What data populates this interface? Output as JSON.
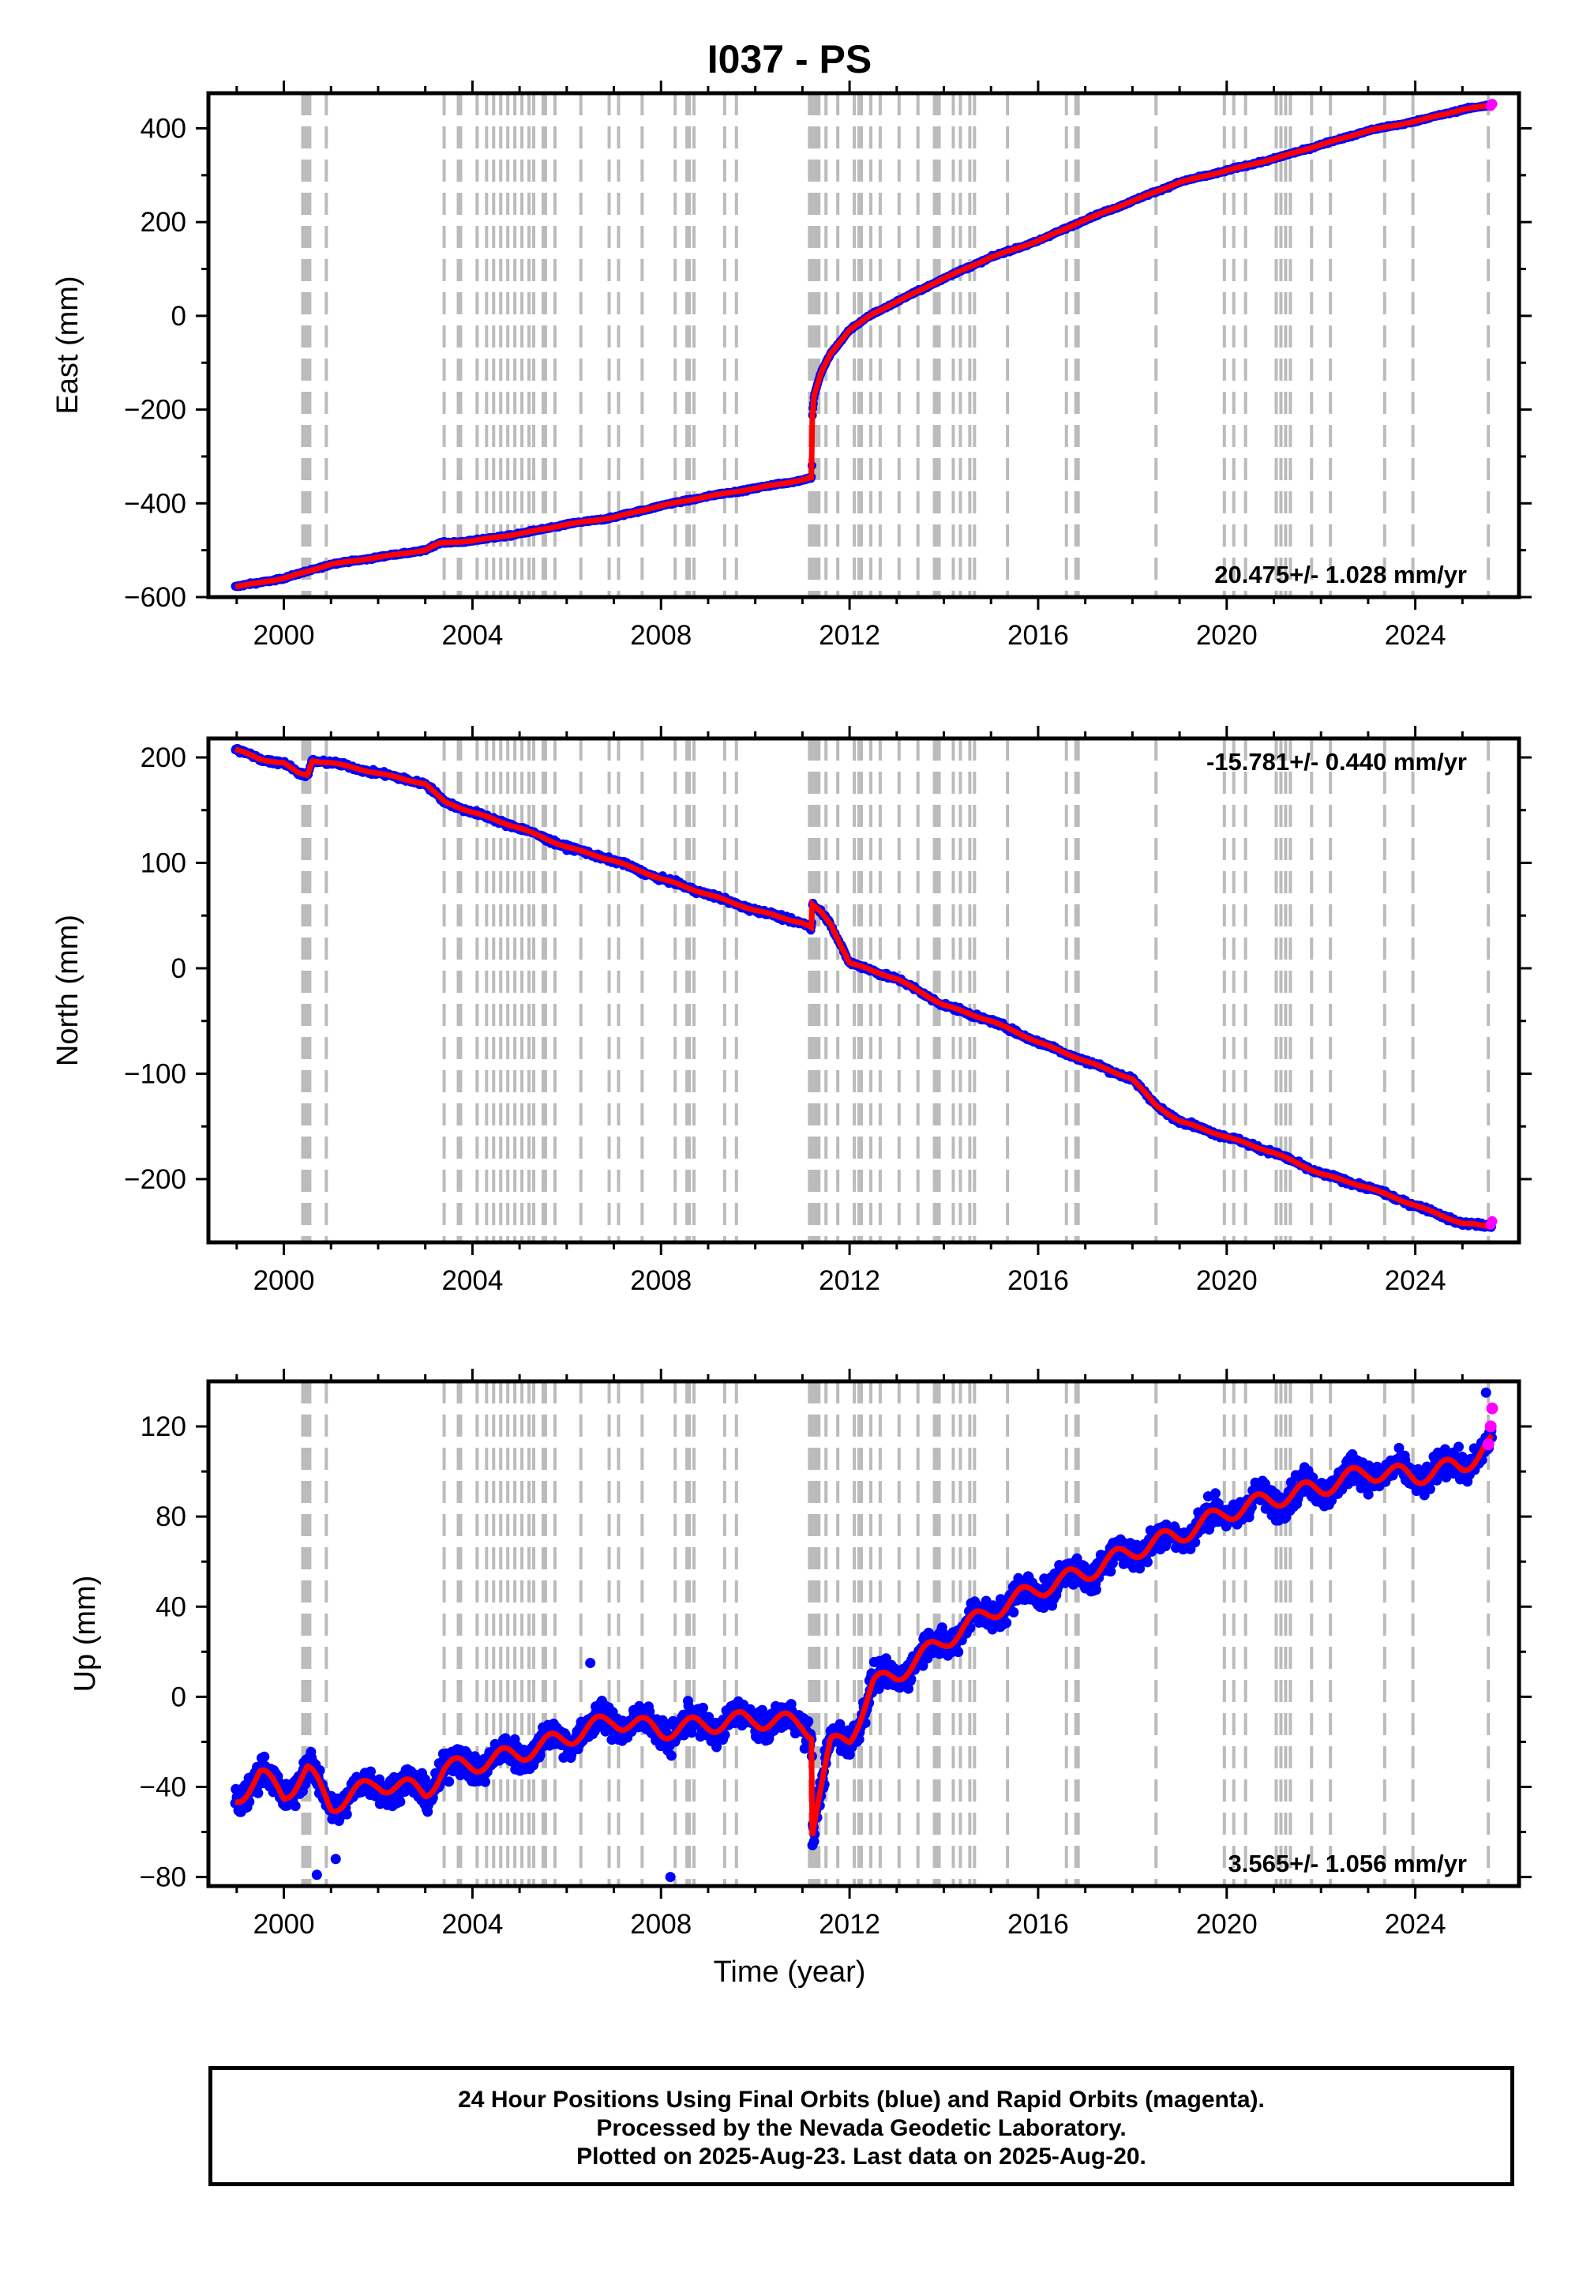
{
  "title": "I037 - PS",
  "x_axis_label": "Time (year)",
  "footer": {
    "line1": "24 Hour Positions Using Final Orbits (blue) and Rapid Orbits (magenta).",
    "line2": "Processed by the Nevada Geodetic Laboratory.",
    "line3": "Plotted on 2025-Aug-23. Last data on 2025-Aug-20."
  },
  "colors": {
    "final_orbits": "#0000ff",
    "rapid_orbits": "#ff00ff",
    "model_fit": "#ff0000",
    "event_lines": "#bbbbbb",
    "frame": "#000000"
  },
  "chart_data": [
    {
      "type": "scatter",
      "panel": "east",
      "ylabel": "East (mm)",
      "xlim": [
        1998.4,
        2026.2
      ],
      "ylim": [
        -600,
        475
      ],
      "xticks": [
        "2000",
        "2004",
        "2008",
        "2012",
        "2016",
        "2020",
        "2024"
      ],
      "yticks": [
        "400",
        "200",
        "0",
        "−200",
        "−400",
        "−600"
      ],
      "rate_text": "20.475+/- 1.028 mm/yr",
      "rate_position": "bottom-right",
      "points": [
        [
          1998.97,
          -578
        ],
        [
          2000.0,
          -560
        ],
        [
          2000.5,
          -545
        ],
        [
          2001.0,
          -530
        ],
        [
          2002.0,
          -515
        ],
        [
          2003.0,
          -500
        ],
        [
          2003.3,
          -485
        ],
        [
          2004.0,
          -480
        ],
        [
          2005.0,
          -465
        ],
        [
          2006.0,
          -445
        ],
        [
          2007.0,
          -430
        ],
        [
          2008.0,
          -405
        ],
        [
          2009.0,
          -385
        ],
        [
          2010.0,
          -368
        ],
        [
          2011.0,
          -350
        ],
        [
          2011.2,
          -345
        ],
        [
          2011.21,
          -215
        ],
        [
          2011.25,
          -170
        ],
        [
          2011.4,
          -120
        ],
        [
          2011.6,
          -80
        ],
        [
          2012.0,
          -30
        ],
        [
          2012.5,
          5
        ],
        [
          2013.0,
          30
        ],
        [
          2014.0,
          80
        ],
        [
          2015.0,
          125
        ],
        [
          2016.0,
          160
        ],
        [
          2017.0,
          205
        ],
        [
          2018.0,
          245
        ],
        [
          2018.5,
          265
        ],
        [
          2019.0,
          285
        ],
        [
          2020.0,
          310
        ],
        [
          2021.0,
          335
        ],
        [
          2022.0,
          365
        ],
        [
          2023.0,
          395
        ],
        [
          2024.0,
          415
        ],
        [
          2025.0,
          440
        ],
        [
          2025.63,
          450
        ]
      ],
      "rapid_points": [
        [
          2025.6,
          448
        ],
        [
          2025.63,
          452
        ]
      ]
    },
    {
      "type": "scatter",
      "panel": "north",
      "ylabel": "North (mm)",
      "xlim": [
        1998.4,
        2026.2
      ],
      "ylim": [
        -260,
        218
      ],
      "xticks": [
        "2000",
        "2004",
        "2008",
        "2012",
        "2016",
        "2020",
        "2024"
      ],
      "yticks": [
        "200",
        "100",
        "0",
        "−100",
        "−200"
      ],
      "rate_text": "-15.781+/- 0.440 mm/yr",
      "rate_position": "top-right",
      "points": [
        [
          1998.97,
          208
        ],
        [
          1999.5,
          198
        ],
        [
          2000.0,
          195
        ],
        [
          2000.3,
          185
        ],
        [
          2000.5,
          183
        ],
        [
          2000.6,
          197
        ],
        [
          2001.0,
          195
        ],
        [
          2002.0,
          185
        ],
        [
          2003.0,
          175
        ],
        [
          2003.4,
          158
        ],
        [
          2004.0,
          148
        ],
        [
          2005.0,
          133
        ],
        [
          2006.0,
          115
        ],
        [
          2007.0,
          102
        ],
        [
          2008.0,
          85
        ],
        [
          2009.0,
          70
        ],
        [
          2010.0,
          55
        ],
        [
          2011.0,
          43
        ],
        [
          2011.2,
          38
        ],
        [
          2011.21,
          60
        ],
        [
          2011.4,
          53
        ],
        [
          2011.6,
          42
        ],
        [
          2012.0,
          5
        ],
        [
          2013.0,
          -10
        ],
        [
          2014.0,
          -35
        ],
        [
          2015.0,
          -50
        ],
        [
          2016.0,
          -70
        ],
        [
          2017.0,
          -88
        ],
        [
          2018.0,
          -105
        ],
        [
          2018.5,
          -130
        ],
        [
          2019.0,
          -145
        ],
        [
          2020.0,
          -160
        ],
        [
          2021.0,
          -175
        ],
        [
          2022.0,
          -195
        ],
        [
          2023.0,
          -208
        ],
        [
          2024.0,
          -225
        ],
        [
          2025.0,
          -242
        ],
        [
          2025.63,
          -245
        ]
      ],
      "rapid_points": [
        [
          2025.6,
          -243
        ],
        [
          2025.63,
          -240
        ]
      ]
    },
    {
      "type": "scatter",
      "panel": "up",
      "ylabel": "Up (mm)",
      "xlim": [
        1998.4,
        2026.2
      ],
      "ylim": [
        -84,
        140
      ],
      "xticks": [
        "2000",
        "2004",
        "2008",
        "2012",
        "2016",
        "2020",
        "2024"
      ],
      "yticks": [
        "120",
        "80",
        "40",
        "0",
        "−40",
        "−80"
      ],
      "rate_text": "3.565+/- 1.056 mm/yr",
      "rate_position": "bottom-right",
      "points": [
        [
          1998.97,
          -45
        ],
        [
          1999.5,
          -35
        ],
        [
          2000.0,
          -43
        ],
        [
          2000.5,
          -33
        ],
        [
          2001.0,
          -48
        ],
        [
          2002.0,
          -38
        ],
        [
          2003.0,
          -42
        ],
        [
          2003.4,
          -32
        ],
        [
          2004.0,
          -30
        ],
        [
          2005.0,
          -25
        ],
        [
          2006.0,
          -18
        ],
        [
          2007.0,
          -10
        ],
        [
          2008.0,
          -15
        ],
        [
          2009.0,
          -12
        ],
        [
          2010.0,
          -10
        ],
        [
          2011.0,
          -12
        ],
        [
          2011.2,
          -15
        ],
        [
          2011.21,
          -58
        ],
        [
          2011.3,
          -48
        ],
        [
          2011.6,
          -22
        ],
        [
          2012.0,
          -18
        ],
        [
          2012.5,
          5
        ],
        [
          2013.0,
          10
        ],
        [
          2014.0,
          25
        ],
        [
          2015.0,
          38
        ],
        [
          2016.0,
          48
        ],
        [
          2017.0,
          55
        ],
        [
          2018.0,
          65
        ],
        [
          2019.0,
          72
        ],
        [
          2020.0,
          82
        ],
        [
          2021.0,
          88
        ],
        [
          2022.0,
          93
        ],
        [
          2023.0,
          100
        ],
        [
          2024.0,
          98
        ],
        [
          2025.0,
          103
        ],
        [
          2025.63,
          112
        ]
      ],
      "rapid_points": [
        [
          2025.55,
          112
        ],
        [
          2025.6,
          120
        ],
        [
          2025.63,
          128
        ]
      ]
    }
  ]
}
